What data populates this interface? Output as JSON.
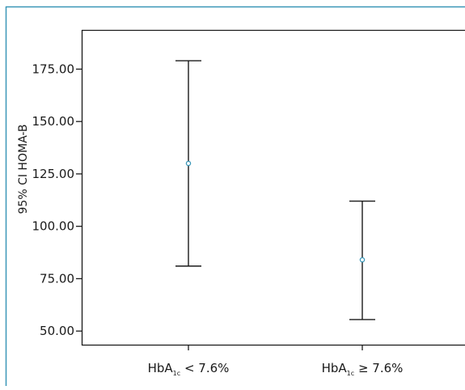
{
  "chart_data": {
    "type": "errorbar",
    "title": "",
    "xlabel": "",
    "ylabel": "95% CI HOMA-B",
    "ylim": [
      43.5,
      193.7
    ],
    "yticks": [
      {
        "value": 50,
        "label": "50.00"
      },
      {
        "value": 75,
        "label": "75.00"
      },
      {
        "value": 100,
        "label": "100.00"
      },
      {
        "value": 125,
        "label": "125.00"
      },
      {
        "value": 150,
        "label": "150.00"
      },
      {
        "value": 175,
        "label": "175.00"
      }
    ],
    "categories": [
      {
        "base": "HbA",
        "sub": "1c",
        "rest": " < 7.6%"
      },
      {
        "base": "HbA",
        "sub": "1c",
        "rest": " ≥ 7.6%"
      }
    ],
    "series": [
      {
        "mean": [
          130.0,
          84.0
        ],
        "lower": [
          81.0,
          55.5
        ],
        "upper": [
          179.0,
          112.0
        ]
      }
    ],
    "grid": false,
    "colors": {
      "frame": "#3b97b8",
      "axis": "#1a1a1a",
      "marker": "#3b97b8",
      "marker_fill": "#ffffff"
    }
  }
}
